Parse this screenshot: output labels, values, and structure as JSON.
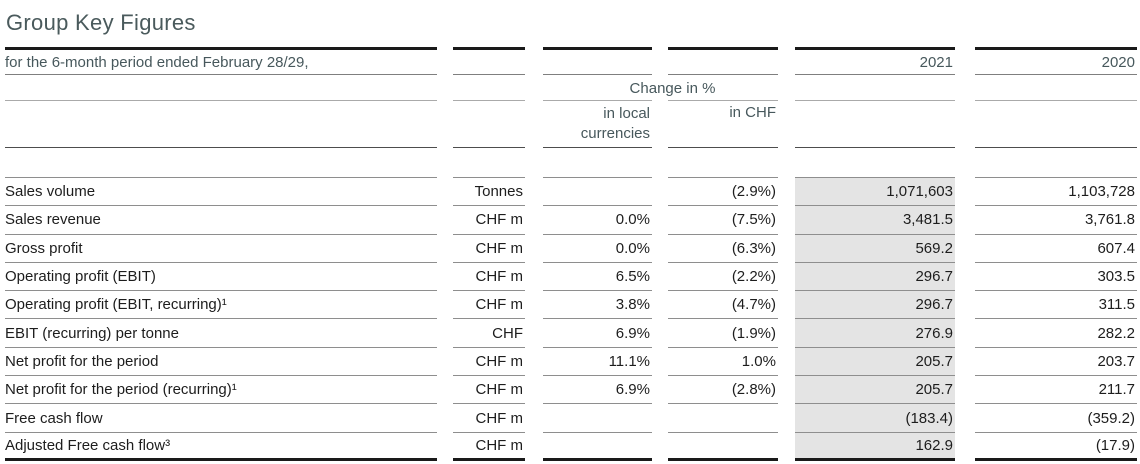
{
  "title": "Group Key Figures",
  "colors": {
    "heading_text": "#4a5a5c",
    "body_text": "#1d1d1d",
    "highlight_2021_column": "#e4e4e4",
    "thick_rule": "#1a1a1a"
  },
  "header": {
    "period_label": "for the 6-month period ended February 28/29,",
    "year_current": "2021",
    "year_prior": "2020",
    "change_group_label": "Change in %",
    "change_local_label": "in local\ncurrencies",
    "change_chf_label": "in CHF"
  },
  "table": {
    "rows": [
      {
        "label": "Sales volume",
        "unit": "Tonnes",
        "local": "",
        "chf": "(2.9%)",
        "y2021": "1,071,603",
        "y2020": "1,103,728"
      },
      {
        "label": "Sales revenue",
        "unit": "CHF m",
        "local": "0.0%",
        "chf": "(7.5%)",
        "y2021": "3,481.5",
        "y2020": "3,761.8"
      },
      {
        "label": "Gross profit",
        "unit": "CHF m",
        "local": "0.0%",
        "chf": "(6.3%)",
        "y2021": "569.2",
        "y2020": "607.4"
      },
      {
        "label": "Operating profit (EBIT)",
        "unit": "CHF m",
        "local": "6.5%",
        "chf": "(2.2%)",
        "y2021": "296.7",
        "y2020": "303.5"
      },
      {
        "label": "Operating profit (EBIT, recurring)¹",
        "unit": "CHF m",
        "local": "3.8%",
        "chf": "(4.7%)",
        "y2021": "296.7",
        "y2020": "311.5"
      },
      {
        "label": "EBIT (recurring) per tonne",
        "unit": "CHF",
        "local": "6.9%",
        "chf": "(1.9%)",
        "y2021": "276.9",
        "y2020": "282.2"
      },
      {
        "label": "Net profit for the period",
        "unit": "CHF m",
        "local": "11.1%",
        "chf": "1.0%",
        "y2021": "205.7",
        "y2020": "203.7"
      },
      {
        "label": "Net profit for the period (recurring)¹",
        "unit": "CHF m",
        "local": "6.9%",
        "chf": "(2.8%)",
        "y2021": "205.7",
        "y2020": "211.7"
      },
      {
        "label": "Free cash flow",
        "unit": "CHF m",
        "local": "",
        "chf": "",
        "y2021": "(183.4)",
        "y2020": "(359.2)"
      },
      {
        "label": "Adjusted Free cash flow³",
        "unit": "CHF m",
        "local": "",
        "chf": "",
        "y2021": "162.9",
        "y2020": "(17.9)"
      }
    ]
  }
}
